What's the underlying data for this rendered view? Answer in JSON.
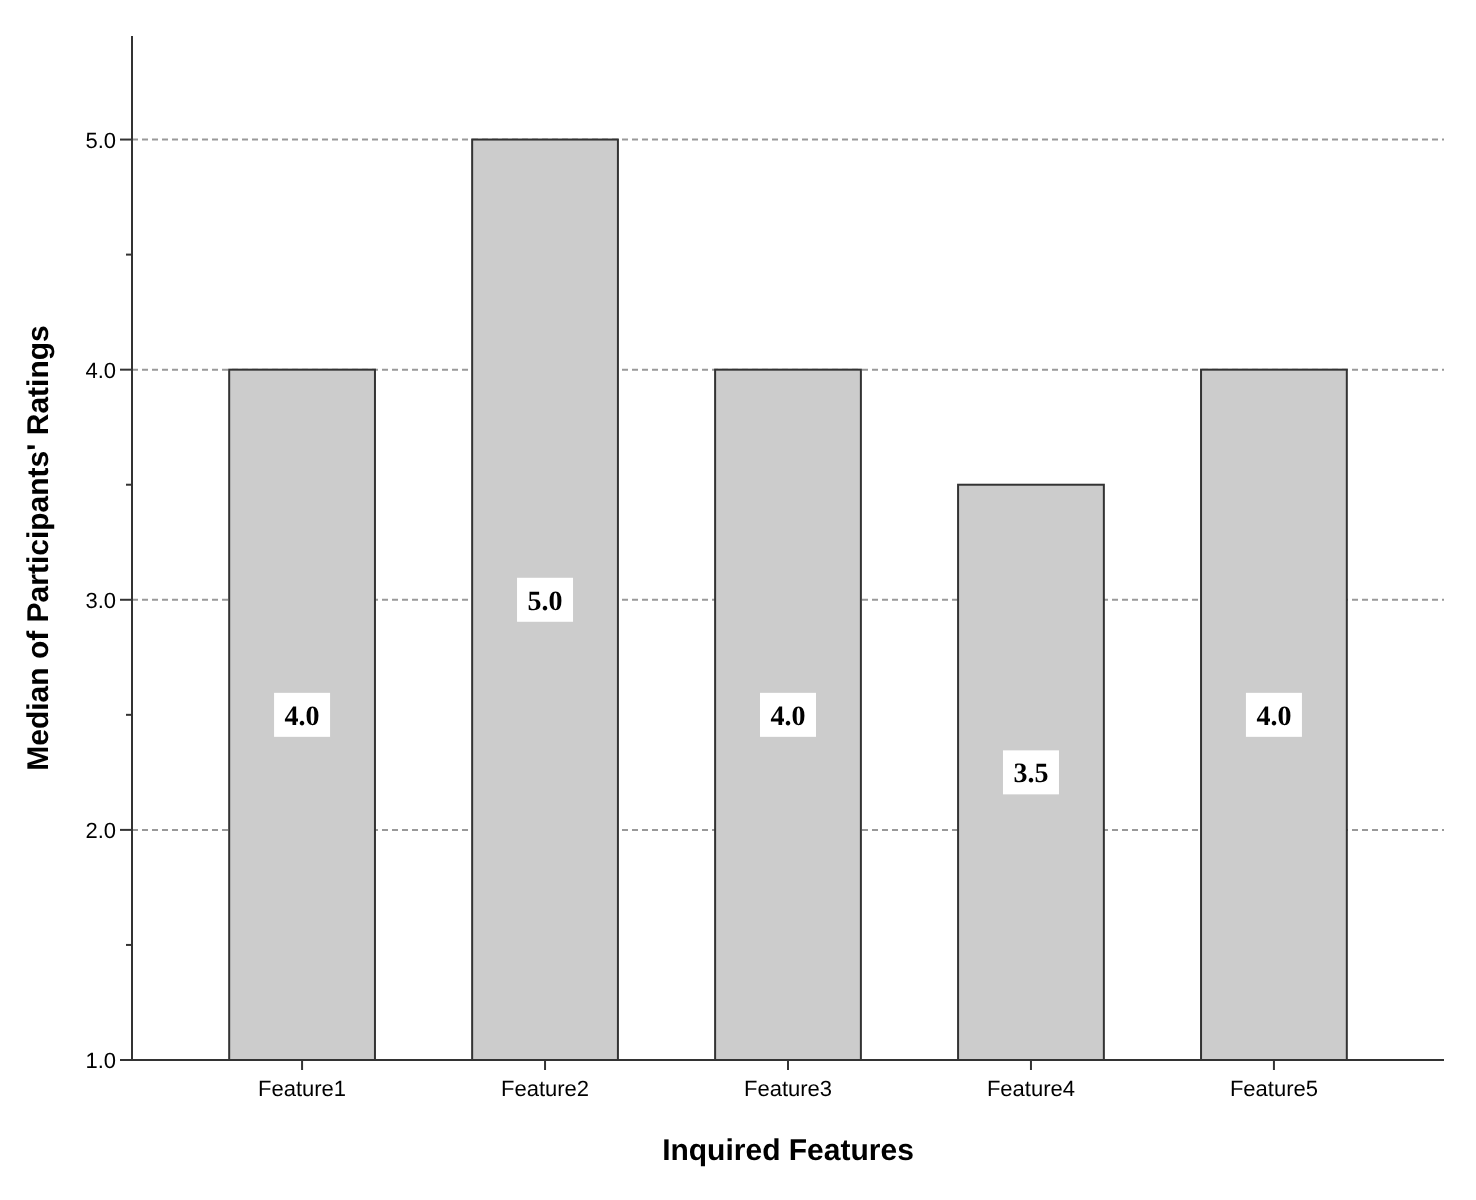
{
  "chart_data": {
    "type": "bar",
    "xlabel": "Inquired Features",
    "ylabel": "Median of Participants' Ratings",
    "categories": [
      "Feature1",
      "Feature2",
      "Feature3",
      "Feature4",
      "Feature5"
    ],
    "values": [
      4.0,
      5.0,
      4.0,
      3.5,
      4.0
    ],
    "color": "#cccccc",
    "data_labels": true,
    "value_labels": [
      "4.0",
      "5.0",
      "4.0",
      "3.5",
      "4.0"
    ],
    "ylim": [
      1,
      5.45
    ],
    "yticks": [
      {
        "value": 1,
        "label": "1.0"
      },
      {
        "value": 1.5,
        "label": null
      },
      {
        "value": 2,
        "label": "2.0"
      },
      {
        "value": 2.5,
        "label": null
      },
      {
        "value": 3,
        "label": "3.0"
      },
      {
        "value": 3.5,
        "label": null
      },
      {
        "value": 4,
        "label": "4.0"
      },
      {
        "value": 4.5,
        "label": null
      },
      {
        "value": 5,
        "label": "5.0"
      }
    ],
    "grid": "y"
  }
}
